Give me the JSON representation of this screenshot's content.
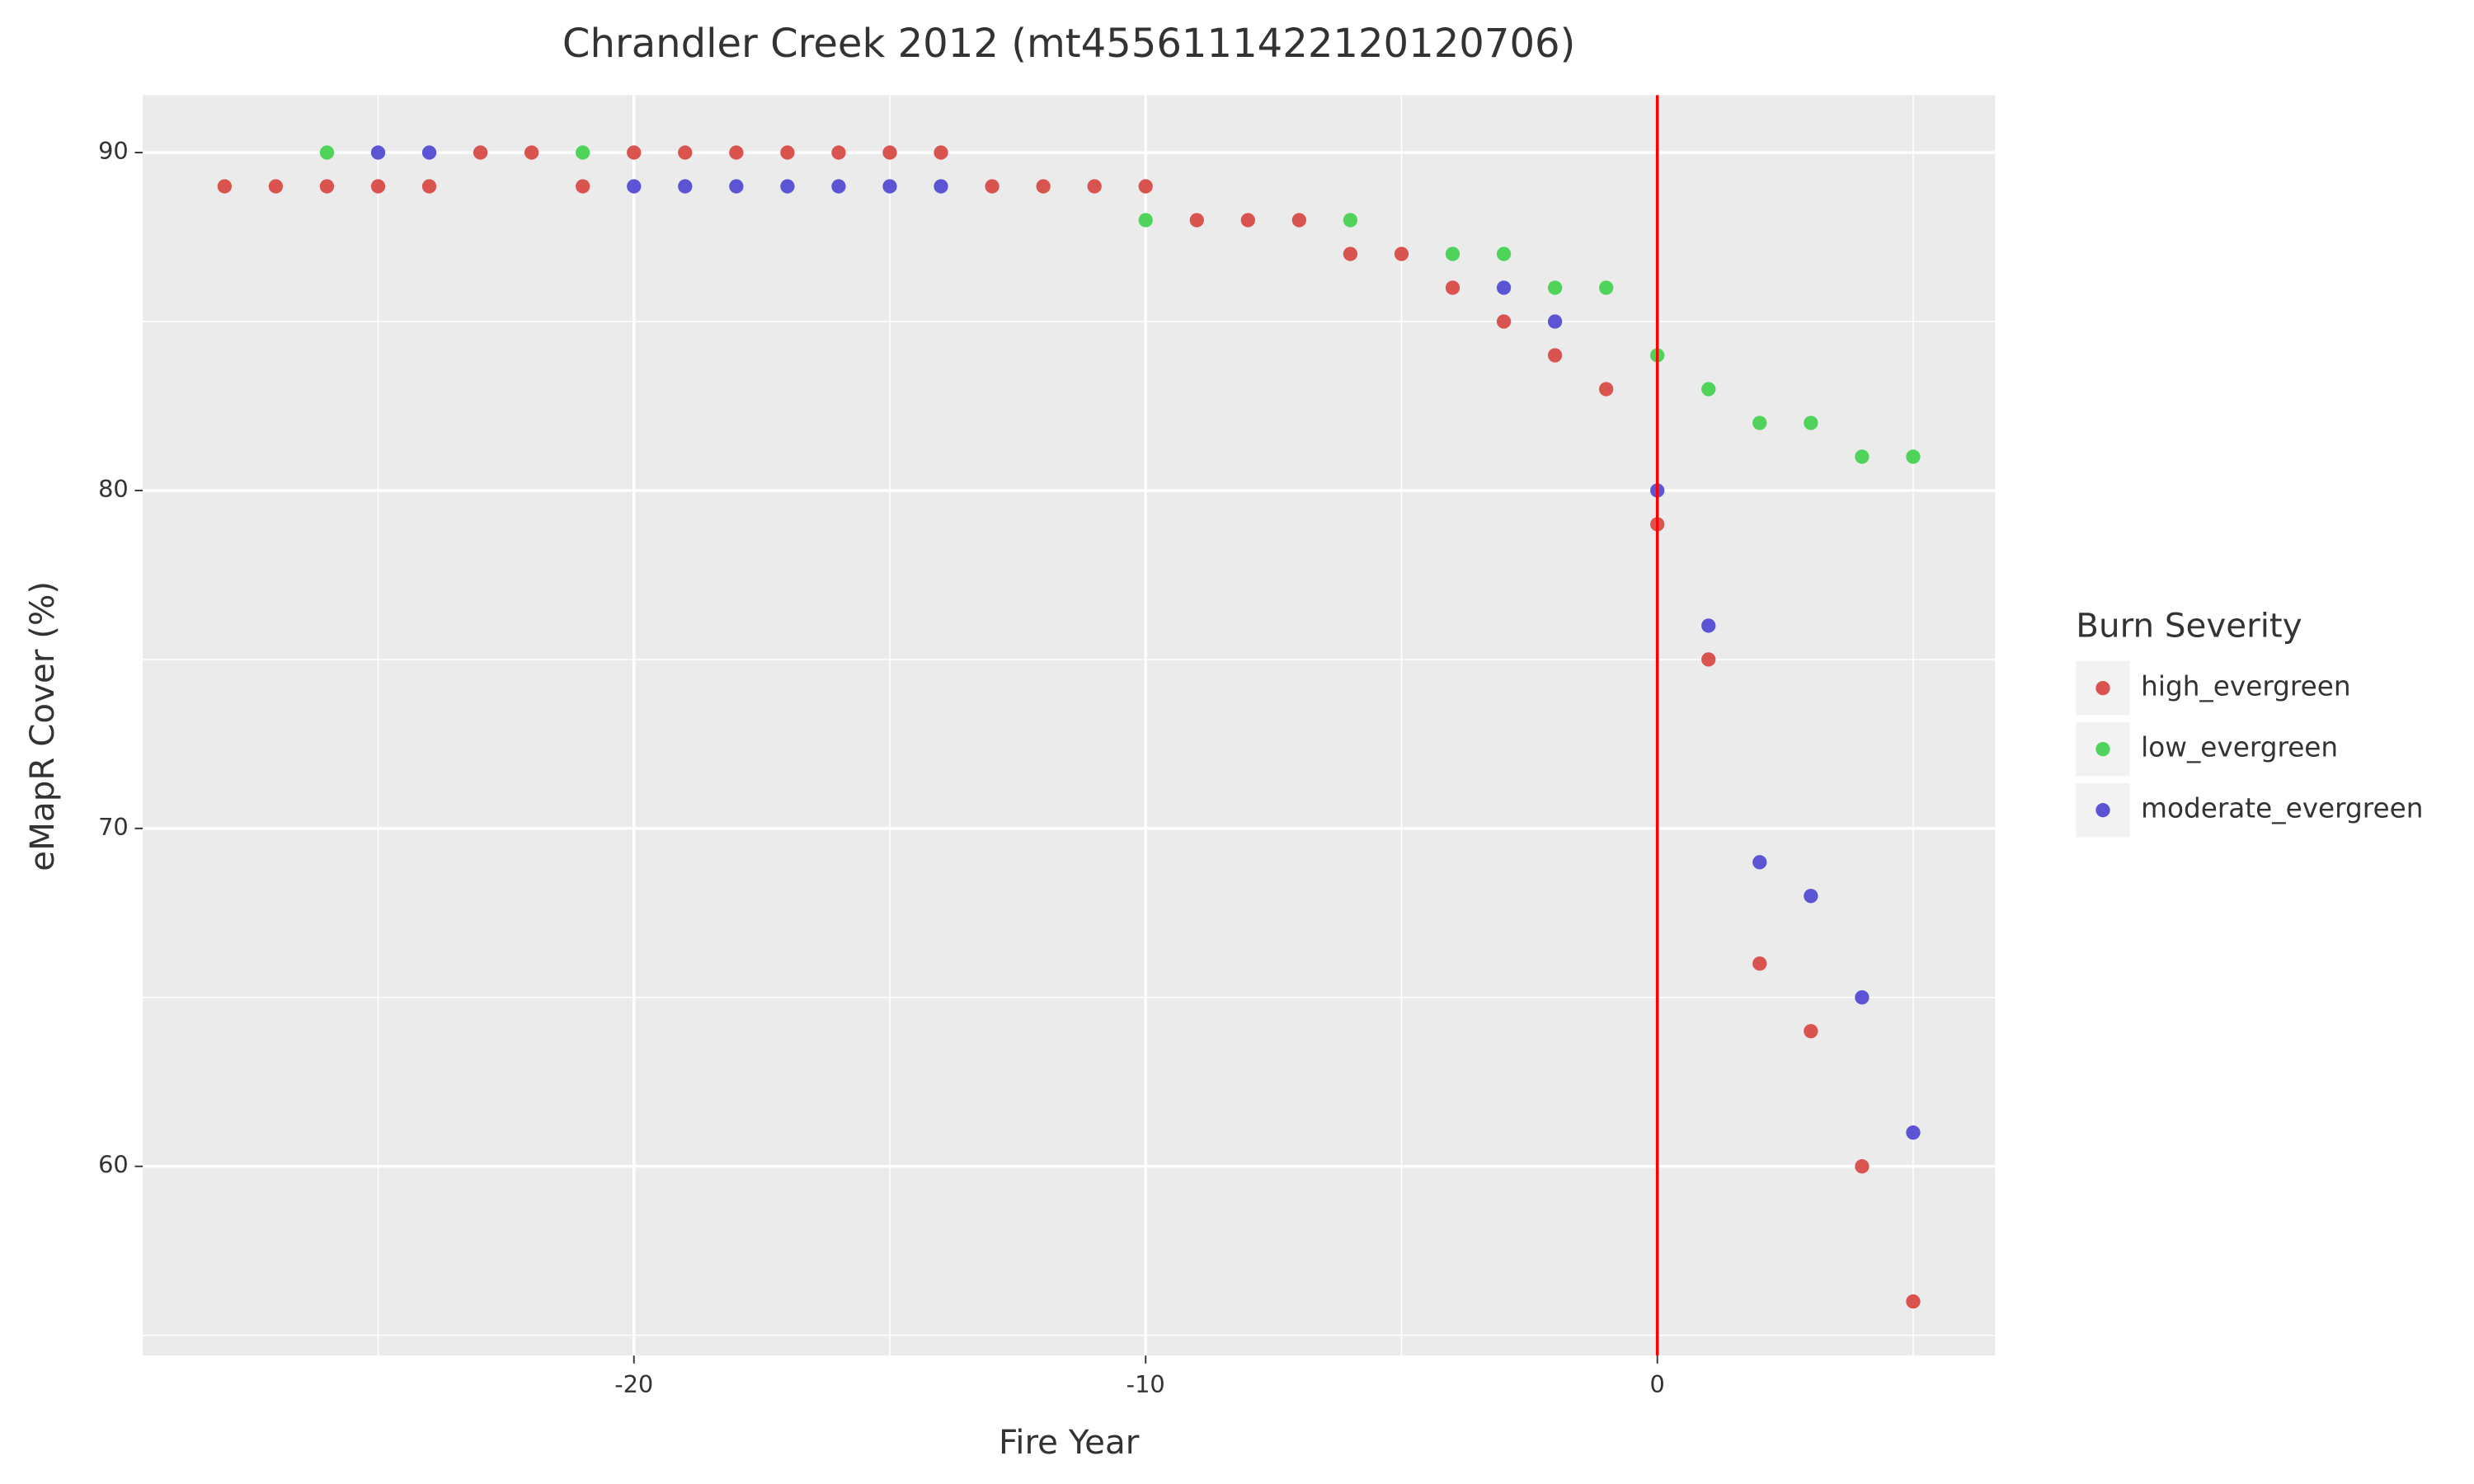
{
  "chart_data": {
    "type": "scatter",
    "title": "Chrandler Creek 2012 (mt4556111422120120706)",
    "x_label": "Fire Year",
    "y_label": "eMapR Cover (%)",
    "legend_title": "Burn Severity",
    "legend_position": "right",
    "xlim": [
      -29.6,
      6.6
    ],
    "ylim": [
      54.4,
      91.7
    ],
    "xticks": [
      -20,
      -10,
      0
    ],
    "yticks": [
      60,
      70,
      80,
      90
    ],
    "xticks_minor": [
      -25,
      -15,
      -5,
      5
    ],
    "yticks_minor": [
      55,
      65,
      75,
      85
    ],
    "grid": true,
    "vline": {
      "x": 0,
      "color": "#ff0000"
    },
    "series": [
      {
        "name": "high_evergreen",
        "color": "#d9534f",
        "x": [
          -28,
          -27,
          -26,
          -25,
          -24,
          -23,
          -22,
          -21,
          -20,
          -19,
          -18,
          -17,
          -16,
          -15,
          -14,
          -13,
          -12,
          -11,
          -10,
          -9,
          -8,
          -7,
          -6,
          -5,
          -4,
          -3,
          -2,
          -1,
          0,
          1,
          2,
          3,
          4,
          5
        ],
        "values": [
          89,
          89,
          89,
          89,
          89,
          90,
          90,
          89,
          90,
          90,
          90,
          90,
          90,
          90,
          90,
          89,
          89,
          89,
          89,
          88,
          88,
          88,
          87,
          87,
          86,
          85,
          84,
          83,
          79,
          75,
          66,
          64,
          60,
          56
        ]
      },
      {
        "name": "low_evergreen",
        "color": "#4fd35a",
        "x": [
          -26,
          -21,
          -10,
          -6,
          -4,
          -3,
          -2,
          -1,
          0,
          1,
          2,
          3,
          4,
          5
        ],
        "values": [
          90,
          90,
          88,
          88,
          87,
          87,
          86,
          86,
          84,
          83,
          82,
          82,
          81,
          81
        ]
      },
      {
        "name": "moderate_evergreen",
        "color": "#5b55d6",
        "x": [
          -25,
          -24,
          -20,
          -19,
          -18,
          -17,
          -16,
          -15,
          -14,
          -3,
          -2,
          0,
          1,
          2,
          3,
          4,
          5
        ],
        "values": [
          90,
          90,
          89,
          89,
          89,
          89,
          89,
          89,
          89,
          86,
          85,
          80,
          76,
          69,
          68,
          65,
          61
        ]
      }
    ]
  }
}
